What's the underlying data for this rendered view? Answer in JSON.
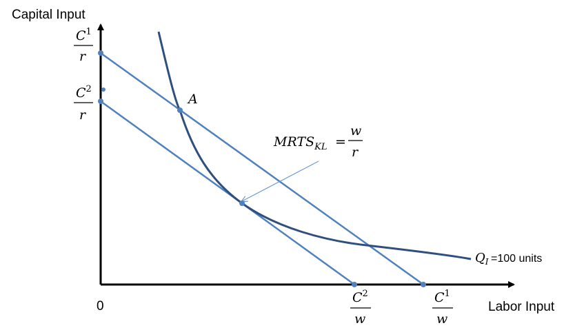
{
  "axes": {
    "y_label": "Capital Input",
    "x_label": "Labor Input",
    "origin": "0"
  },
  "y_intercepts": [
    {
      "num_base": "C",
      "num_sup": "1",
      "den": "r"
    },
    {
      "num_base": "C",
      "num_sup": "2",
      "den": "r"
    }
  ],
  "x_intercepts": [
    {
      "num_base": "C",
      "num_sup": "2",
      "den": "w"
    },
    {
      "num_base": "C",
      "num_sup": "1",
      "den": "w"
    }
  ],
  "point_a": "A",
  "mrts": {
    "base": "MRTS",
    "sub": "KL",
    "eq": "=",
    "num": "w",
    "den": "r"
  },
  "isoquant": {
    "symbol": "Q",
    "sub": "I",
    "text": "=100 units"
  },
  "colors": {
    "budget_lines": "#4F81BD",
    "isoquant": "#2F4F7F",
    "axes": "#000000"
  }
}
